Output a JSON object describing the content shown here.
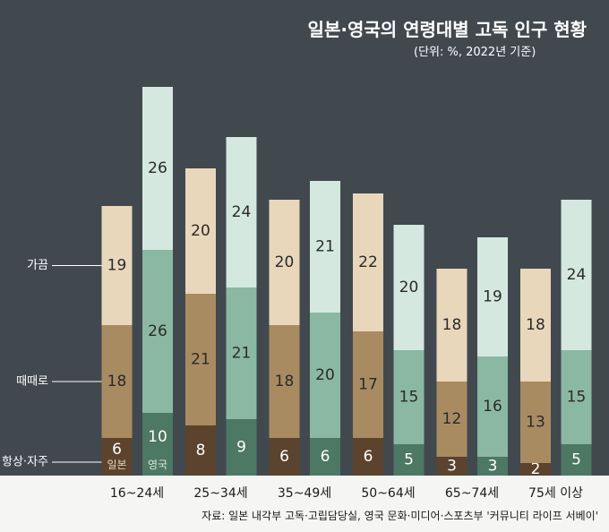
{
  "chart_data": {
    "type": "bar",
    "stacked": true,
    "title": "일본·영국의 연령대별 고독 인구 현황",
    "subtitle": "(단위: %, 2022년 기준)",
    "categories": [
      "16~24세",
      "25~34세",
      "35~49세",
      "50~64세",
      "65~74세",
      "75세 이상"
    ],
    "groups": [
      {
        "name": "일본",
        "series": [
          {
            "name": "항상·자주",
            "values": [
              6,
              8,
              6,
              6,
              3,
              2
            ]
          },
          {
            "name": "때때로",
            "values": [
              18,
              21,
              18,
              17,
              12,
              13
            ]
          },
          {
            "name": "가끔",
            "values": [
              19,
              20,
              20,
              22,
              18,
              18
            ]
          }
        ]
      },
      {
        "name": "영국",
        "series": [
          {
            "name": "항상·자주",
            "values": [
              10,
              9,
              6,
              5,
              3,
              5
            ]
          },
          {
            "name": "때때로",
            "values": [
              26,
              21,
              20,
              15,
              16,
              15
            ]
          },
          {
            "name": "가끔",
            "values": [
              26,
              24,
              21,
              20,
              19,
              24
            ]
          }
        ]
      }
    ],
    "legend": [
      "가끔",
      "때때로",
      "항상·자주"
    ],
    "source": "자료: 일본 내각부 고독·고립담당실, 영국 문화·미디어·스포츠부 '커뮤니티 라이프 서베이'"
  },
  "colors": {
    "background": "#41494f",
    "band": "#f5f5f4",
    "japan": [
      "#5b432e",
      "#a98b62",
      "#e8d7bb"
    ],
    "uk": [
      "#4d7863",
      "#8bb8a2",
      "#d4e8df"
    ],
    "japan_text": [
      "#ffffff",
      "#2a2a2a",
      "#2a2a2a"
    ],
    "uk_text": [
      "#ffffff",
      "#2a2a2a",
      "#2a2a2a"
    ]
  }
}
